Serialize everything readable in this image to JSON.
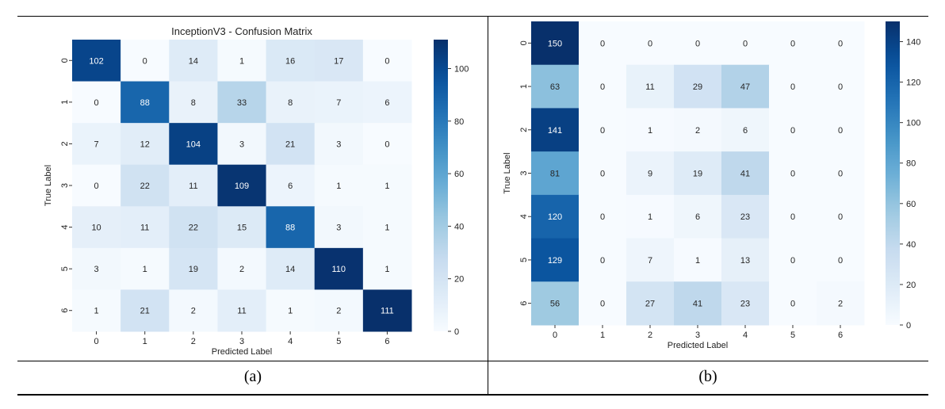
{
  "captions": [
    "(a)",
    "(b)"
  ],
  "chart_data": [
    {
      "type": "heatmap",
      "title": "InceptionV3 - Confusion Matrix",
      "xlabel": "Predicted Label",
      "ylabel": "True Label",
      "x_categories": [
        "0",
        "1",
        "2",
        "3",
        "4",
        "5",
        "6"
      ],
      "y_categories": [
        "0",
        "1",
        "2",
        "3",
        "4",
        "5",
        "6"
      ],
      "matrix": [
        [
          102,
          0,
          14,
          1,
          16,
          17,
          0
        ],
        [
          0,
          88,
          8,
          33,
          8,
          7,
          6
        ],
        [
          7,
          12,
          104,
          3,
          21,
          3,
          0
        ],
        [
          0,
          22,
          11,
          109,
          6,
          1,
          1
        ],
        [
          10,
          11,
          22,
          15,
          88,
          3,
          1
        ],
        [
          3,
          1,
          19,
          2,
          14,
          110,
          1
        ],
        [
          1,
          21,
          2,
          11,
          1,
          2,
          111
        ]
      ],
      "colorbar_range": [
        0,
        111
      ],
      "colorbar_ticks": [
        0,
        20,
        40,
        60,
        80,
        100
      ],
      "colormap": "Blues"
    },
    {
      "type": "heatmap",
      "title": "",
      "xlabel": "Predicted Label",
      "ylabel": "True Label",
      "x_categories": [
        "0",
        "1",
        "2",
        "3",
        "4",
        "5",
        "6"
      ],
      "y_categories": [
        "0",
        "1",
        "2",
        "3",
        "4",
        "5",
        "6"
      ],
      "matrix": [
        [
          150,
          0,
          0,
          0,
          0,
          0,
          0
        ],
        [
          63,
          0,
          11,
          29,
          47,
          0,
          0
        ],
        [
          141,
          0,
          1,
          2,
          6,
          0,
          0
        ],
        [
          81,
          0,
          9,
          19,
          41,
          0,
          0
        ],
        [
          120,
          0,
          1,
          6,
          23,
          0,
          0
        ],
        [
          129,
          0,
          7,
          1,
          13,
          0,
          0
        ],
        [
          56,
          0,
          27,
          41,
          23,
          0,
          2
        ]
      ],
      "colorbar_range": [
        0,
        150
      ],
      "colorbar_ticks": [
        0,
        20,
        40,
        60,
        80,
        100,
        120,
        140
      ],
      "colormap": "Blues"
    }
  ]
}
